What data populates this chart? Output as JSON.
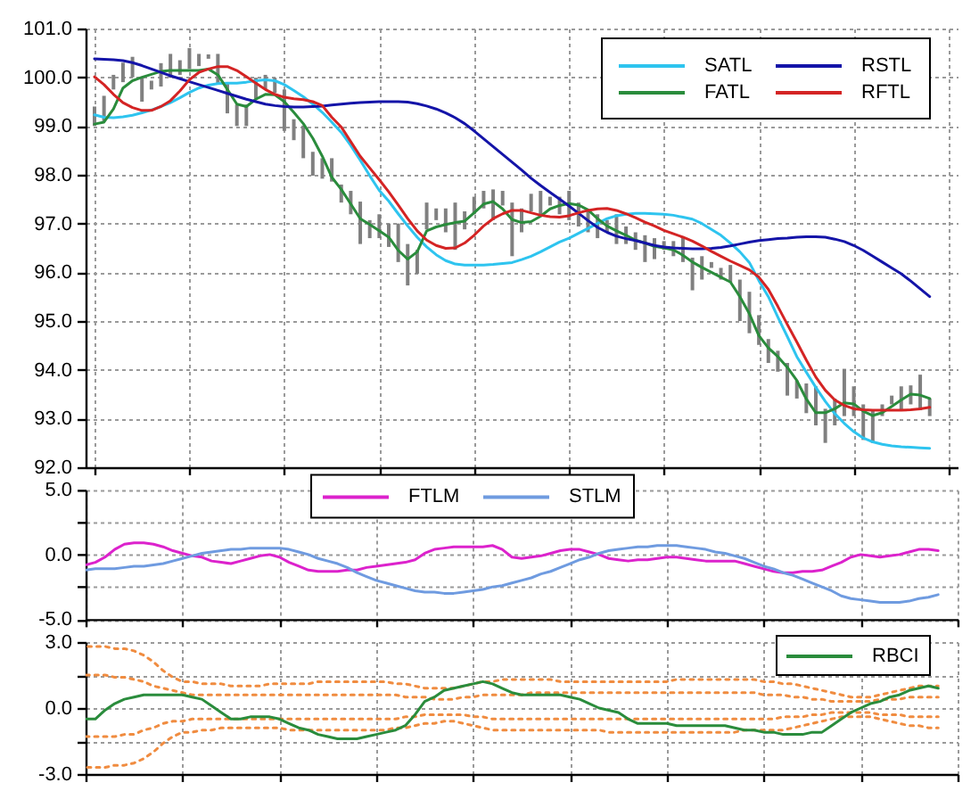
{
  "chart_data": [
    {
      "type": "line",
      "categories": [
        null,
        null,
        null,
        null,
        null,
        null,
        null,
        null,
        null,
        null,
        null,
        null,
        null,
        null,
        null,
        null,
        null,
        null,
        null,
        null,
        null,
        null,
        null,
        null,
        null,
        null,
        null,
        null,
        null,
        null,
        null,
        null,
        null,
        null,
        null,
        null,
        null,
        null,
        null,
        null,
        null,
        null,
        null,
        null,
        null,
        null,
        null,
        null,
        null,
        null,
        null,
        null,
        null,
        null,
        null,
        null,
        null,
        null,
        null,
        null,
        null,
        null,
        null,
        null,
        null,
        null,
        null,
        null,
        null,
        null,
        null,
        null,
        null,
        null,
        null,
        null,
        null,
        null,
        null,
        null,
        null,
        null,
        null,
        null,
        null,
        null,
        null,
        null,
        null,
        null,
        null
      ],
      "ylim": [
        92,
        101
      ],
      "yticks": [
        {
          "value": 92,
          "label": "92.0"
        },
        {
          "value": 93,
          "label": "93.0"
        },
        {
          "value": 94,
          "label": "94.0"
        },
        {
          "value": 95,
          "label": "95.0"
        },
        {
          "value": 96,
          "label": "96.0"
        },
        {
          "value": 97,
          "label": "97.0"
        },
        {
          "value": 98,
          "label": "98.0"
        },
        {
          "value": 99,
          "label": "99.0"
        },
        {
          "value": 100,
          "label": "100.0"
        },
        {
          "value": 101,
          "label": "101.0"
        }
      ],
      "grid": true,
      "legend": "top right",
      "series": [
        {
          "type": "bar",
          "color": "#808080",
          "base": [
            99.0,
            99.1,
            99.75,
            99.9,
            100.0,
            99.5,
            99.75,
            99.81,
            99.99,
            100.05,
            100.17,
            100.23,
            100.38,
            99.87,
            99.26,
            99.0,
            99.0,
            99.56,
            99.75,
            99.68,
            98.9,
            98.71,
            98.34,
            97.98,
            97.92,
            97.86,
            97.43,
            97.19,
            96.58,
            96.7,
            96.7,
            96.52,
            96.21,
            95.73,
            95.97,
            96.88,
            97.07,
            96.82,
            96.46,
            96.88,
            97.19,
            97.31,
            97.07,
            97.37,
            96.33,
            96.82,
            97.25,
            97.19,
            97.37,
            97.19,
            97.07,
            96.94,
            96.82,
            96.7,
            96.82,
            96.58,
            96.58,
            96.46,
            96.21,
            96.27,
            96.46,
            96.33,
            96.21,
            95.63,
            95.85,
            96.09,
            95.85,
            95.79,
            95.0,
            94.75,
            94.51,
            94.14,
            93.96,
            93.47,
            93.41,
            93.11,
            92.86,
            92.5,
            92.86,
            93.05,
            93.05,
            92.56,
            92.5,
            93.05,
            93.29,
            93.17,
            93.29,
            93.17,
            93.05,
            null,
            null
          ],
          "values": [
            0.4,
            0.52,
            0.3,
            0.4,
            0.42,
            0.49,
            0.18,
            0.48,
            0.49,
            0.3,
            0.43,
            0.25,
            0.09,
            0.61,
            0.61,
            0.44,
            0.44,
            0.43,
            0.3,
            0.31,
            0.85,
            0.43,
            0.67,
            0.49,
            0.42,
            0.48,
            0.37,
            0.48,
            0.87,
            0.37,
            0.49,
            0.48,
            0.79,
            0.85,
            0.49,
            0.55,
            0.24,
            0.49,
            0.97,
            0.37,
            0.36,
            0.36,
            0.63,
            0.3,
            1.1,
            0.49,
            0.36,
            0.48,
            0.18,
            0.36,
            0.6,
            0.49,
            0.43,
            0.49,
            0.25,
            0.61,
            0.36,
            0.36,
            0.55,
            0.43,
            0.18,
            0.31,
            0.49,
            0.67,
            0.48,
            0.12,
            0.24,
            0.36,
            0.85,
            0.85,
            0.61,
            0.49,
            0.43,
            0.67,
            0.37,
            0.61,
            0.8,
            0.7,
            0.55,
            0.97,
            0.61,
            0.73,
            0.67,
            0.24,
            0.18,
            0.49,
            0.39,
            0.73,
            0.36,
            null,
            null
          ]
        },
        {
          "name": "SATL",
          "color": "#2ec4ef",
          "values": [
            99.23,
            99.18,
            99.17,
            99.19,
            99.22,
            99.27,
            99.33,
            99.4,
            99.48,
            99.58,
            99.69,
            99.78,
            99.84,
            99.87,
            99.88,
            99.88,
            99.9,
            99.93,
            99.95,
            99.93,
            99.85,
            99.73,
            99.6,
            99.45,
            99.28,
            99.08,
            98.87,
            98.6,
            98.3,
            97.98,
            97.68,
            97.46,
            97.2,
            96.95,
            96.72,
            96.52,
            96.36,
            96.24,
            96.17,
            96.15,
            96.15,
            96.15,
            96.16,
            96.18,
            96.2,
            96.26,
            96.33,
            96.42,
            96.52,
            96.62,
            96.7,
            96.8,
            96.9,
            97.0,
            97.1,
            97.16,
            97.19,
            97.21,
            97.21,
            97.2,
            97.19,
            97.17,
            97.13,
            97.09,
            97.0,
            96.88,
            96.76,
            96.6,
            96.42,
            96.2,
            95.83,
            95.5,
            95.08,
            94.68,
            94.27,
            93.95,
            93.64,
            93.35,
            93.1,
            92.9,
            92.73,
            92.6,
            92.52,
            92.47,
            92.44,
            92.42,
            92.41,
            92.4,
            92.39,
            null,
            null
          ]
        },
        {
          "name": "FATL",
          "color": "#2a8c3c",
          "values": [
            99.04,
            99.08,
            99.35,
            99.78,
            99.93,
            100.0,
            100.06,
            100.12,
            100.14,
            100.14,
            100.14,
            100.14,
            100.17,
            100.05,
            99.75,
            99.45,
            99.4,
            99.55,
            99.65,
            99.64,
            99.5,
            99.28,
            99.05,
            98.75,
            98.38,
            97.95,
            97.7,
            97.4,
            97.1,
            96.98,
            96.85,
            96.72,
            96.45,
            96.27,
            96.42,
            96.85,
            96.93,
            96.98,
            97.02,
            97.05,
            97.22,
            97.4,
            97.45,
            97.3,
            97.08,
            97.02,
            97.04,
            97.15,
            97.3,
            97.37,
            97.41,
            97.38,
            97.28,
            97.1,
            96.95,
            96.85,
            96.76,
            96.66,
            96.6,
            96.53,
            96.5,
            96.46,
            96.35,
            96.21,
            96.1,
            96.0,
            95.9,
            95.8,
            95.5,
            95.15,
            94.7,
            94.45,
            94.27,
            94.05,
            93.78,
            93.4,
            93.12,
            93.12,
            93.2,
            93.32,
            93.3,
            93.15,
            93.06,
            93.12,
            93.25,
            93.38,
            93.5,
            93.48,
            93.41,
            null,
            null
          ]
        },
        {
          "name": "RSTL",
          "color": "#1414a8",
          "values": [
            100.38,
            100.37,
            100.36,
            100.34,
            100.3,
            100.24,
            100.17,
            100.1,
            100.03,
            99.97,
            99.91,
            99.85,
            99.79,
            99.73,
            99.67,
            99.61,
            99.55,
            99.5,
            99.45,
            99.42,
            99.4,
            99.39,
            99.39,
            99.4,
            99.41,
            99.43,
            99.45,
            99.47,
            99.48,
            99.49,
            99.5,
            99.5,
            99.5,
            99.49,
            99.46,
            99.41,
            99.35,
            99.27,
            99.17,
            99.05,
            98.9,
            98.74,
            98.58,
            98.42,
            98.26,
            98.1,
            97.93,
            97.78,
            97.64,
            97.5,
            97.36,
            97.21,
            97.06,
            96.92,
            96.82,
            96.74,
            96.69,
            96.65,
            96.6,
            96.55,
            96.52,
            96.5,
            96.49,
            96.48,
            96.48,
            96.49,
            96.51,
            96.54,
            96.58,
            96.62,
            96.65,
            96.67,
            96.69,
            96.7,
            96.72,
            96.73,
            96.73,
            96.72,
            96.68,
            96.63,
            96.55,
            96.45,
            96.33,
            96.21,
            96.09,
            95.97,
            95.82,
            95.66,
            95.5,
            null,
            null
          ]
        },
        {
          "name": "RFTL",
          "color": "#d42424",
          "values": [
            100.01,
            99.85,
            99.65,
            99.48,
            99.38,
            99.32,
            99.32,
            99.4,
            99.52,
            99.72,
            99.95,
            100.1,
            100.17,
            100.22,
            100.22,
            100.14,
            100.01,
            99.88,
            99.75,
            99.65,
            99.59,
            99.56,
            99.54,
            99.5,
            99.42,
            99.18,
            98.98,
            98.68,
            98.38,
            98.14,
            97.9,
            97.65,
            97.38,
            97.1,
            96.85,
            96.66,
            96.55,
            96.49,
            96.5,
            96.6,
            96.76,
            96.95,
            97.1,
            97.2,
            97.27,
            97.27,
            97.22,
            97.17,
            97.14,
            97.13,
            97.16,
            97.22,
            97.27,
            97.3,
            97.31,
            97.27,
            97.2,
            97.12,
            97.03,
            96.95,
            96.86,
            96.79,
            96.72,
            96.64,
            96.54,
            96.43,
            96.33,
            96.23,
            96.14,
            96.05,
            95.9,
            95.65,
            95.3,
            94.93,
            94.57,
            94.2,
            93.85,
            93.58,
            93.38,
            93.27,
            93.2,
            93.18,
            93.17,
            93.17,
            93.17,
            93.17,
            93.18,
            93.2,
            93.23,
            null,
            null
          ]
        }
      ]
    },
    {
      "type": "line",
      "categories": [
        null,
        null,
        null,
        null,
        null,
        null,
        null,
        null,
        null,
        null,
        null,
        null,
        null,
        null,
        null,
        null,
        null,
        null,
        null,
        null,
        null,
        null,
        null,
        null,
        null,
        null,
        null,
        null,
        null,
        null,
        null,
        null,
        null,
        null,
        null,
        null,
        null,
        null,
        null,
        null,
        null,
        null,
        null,
        null,
        null,
        null,
        null,
        null,
        null,
        null,
        null,
        null,
        null,
        null,
        null,
        null,
        null,
        null,
        null,
        null,
        null,
        null,
        null,
        null,
        null,
        null,
        null,
        null,
        null,
        null,
        null,
        null,
        null,
        null,
        null,
        null,
        null,
        null,
        null,
        null,
        null,
        null,
        null,
        null,
        null,
        null,
        null,
        null,
        null,
        null,
        null
      ],
      "ylim": [
        -5,
        5
      ],
      "yticks": [
        {
          "value": -5,
          "label": "-5.0"
        },
        {
          "value": -2.5,
          "label": null
        },
        {
          "value": 0,
          "label": "0.0"
        },
        {
          "value": 2.5,
          "label": null
        },
        {
          "value": 5,
          "label": "5.0"
        }
      ],
      "grid": true,
      "legend": "top",
      "series": [
        {
          "name": "FTLM",
          "color": "#dc22cc",
          "values": [
            -0.8,
            -0.6,
            -0.2,
            0.4,
            0.8,
            0.9,
            0.9,
            0.8,
            0.6,
            0.3,
            0.1,
            -0.1,
            -0.2,
            -0.5,
            -0.6,
            -0.7,
            -0.5,
            -0.3,
            -0.1,
            0,
            -0.2,
            -0.6,
            -0.9,
            -1.2,
            -1.3,
            -1.3,
            -1.3,
            -1.2,
            -1.2,
            -1.0,
            -0.9,
            -0.8,
            -0.7,
            -0.6,
            -0.4,
            0.1,
            0.4,
            0.5,
            0.6,
            0.6,
            0.6,
            0.6,
            0.7,
            0.4,
            -0.2,
            -0.3,
            -0.2,
            -0.1,
            0.1,
            0.3,
            0.4,
            0.4,
            0.2,
            0,
            -0.3,
            -0.4,
            -0.5,
            -0.4,
            -0.4,
            -0.3,
            -0.2,
            -0.2,
            -0.3,
            -0.4,
            -0.5,
            -0.5,
            -0.5,
            -0.5,
            -0.7,
            -0.9,
            -1.1,
            -1.3,
            -1.4,
            -1.4,
            -1.3,
            -1.3,
            -1.2,
            -0.9,
            -0.6,
            -0.2,
            0,
            -0.1,
            -0.2,
            -0.1,
            0,
            0.2,
            0.4,
            0.4,
            0.3,
            null,
            null
          ]
        },
        {
          "name": "STLM",
          "color": "#6f9be0",
          "values": [
            -1.2,
            -1.1,
            -1.1,
            -1.1,
            -1.0,
            -0.9,
            -0.9,
            -0.8,
            -0.7,
            -0.5,
            -0.3,
            -0.1,
            0.1,
            0.2,
            0.3,
            0.4,
            0.4,
            0.5,
            0.5,
            0.5,
            0.5,
            0.4,
            0.2,
            0,
            -0.3,
            -0.5,
            -0.7,
            -1.0,
            -1.4,
            -1.7,
            -2.0,
            -2.2,
            -2.4,
            -2.6,
            -2.8,
            -2.9,
            -2.9,
            -3.0,
            -3.0,
            -2.9,
            -2.8,
            -2.7,
            -2.5,
            -2.4,
            -2.2,
            -2.0,
            -1.8,
            -1.5,
            -1.3,
            -1.0,
            -0.7,
            -0.4,
            -0.2,
            0.1,
            0.3,
            0.4,
            0.5,
            0.6,
            0.6,
            0.7,
            0.7,
            0.7,
            0.6,
            0.5,
            0.4,
            0.2,
            0.1,
            -0.1,
            -0.3,
            -0.6,
            -0.9,
            -1.1,
            -1.4,
            -1.6,
            -1.9,
            -2.2,
            -2.5,
            -2.8,
            -3.2,
            -3.4,
            -3.5,
            -3.6,
            -3.7,
            -3.7,
            -3.7,
            -3.6,
            -3.4,
            -3.3,
            -3.1,
            null,
            null
          ]
        }
      ]
    },
    {
      "type": "line",
      "categories": [
        null,
        null,
        null,
        null,
        null,
        null,
        null,
        null,
        null,
        null,
        null,
        null,
        null,
        null,
        null,
        null,
        null,
        null,
        null,
        null,
        null,
        null,
        null,
        null,
        null,
        null,
        null,
        null,
        null,
        null,
        null,
        null,
        null,
        null,
        null,
        null,
        null,
        null,
        null,
        null,
        null,
        null,
        null,
        null,
        null,
        null,
        null,
        null,
        null,
        null,
        null,
        null,
        null,
        null,
        null,
        null,
        null,
        null,
        null,
        null,
        null,
        null,
        null,
        null,
        null,
        null,
        null,
        null,
        null,
        null,
        null,
        null,
        null,
        null,
        null,
        null,
        null,
        null,
        null,
        null,
        null,
        null,
        null,
        null,
        null,
        null,
        null,
        null,
        null,
        null,
        null
      ],
      "ylim": [
        -3,
        3
      ],
      "yticks": [
        {
          "value": -3,
          "label": "-3.0"
        },
        {
          "value": -1.5,
          "label": null
        },
        {
          "value": 0,
          "label": "0.0"
        },
        {
          "value": 1.5,
          "label": null
        },
        {
          "value": 3,
          "label": "3.0"
        }
      ],
      "grid": true,
      "legend": "top right",
      "series": [
        {
          "color": "#f08c40",
          "line_style": "dashed",
          "values": [
            2.8,
            2.8,
            2.8,
            2.7,
            2.7,
            2.6,
            2.4,
            2.1,
            1.7,
            1.4,
            1.2,
            1.2,
            1.1,
            1.1,
            1.1,
            1.0,
            1.0,
            1.0,
            1.0,
            1.1,
            1.1,
            1.1,
            1.1,
            1.1,
            1.2,
            1.2,
            1.2,
            1.2,
            1.2,
            1.2,
            1.2,
            1.2,
            1.1,
            1.1,
            1.0,
            0.9,
            0.9,
            0.9,
            0.9,
            1.0,
            1.1,
            1.2,
            1.2,
            1.3,
            1.3,
            1.3,
            1.3,
            1.3,
            1.3,
            1.2,
            1.2,
            1.2,
            1.2,
            1.2,
            1.2,
            1.2,
            1.2,
            1.2,
            1.2,
            1.2,
            1.2,
            1.3,
            1.3,
            1.3,
            1.3,
            1.3,
            1.3,
            1.3,
            1.3,
            1.3,
            1.2,
            1.2,
            1.1,
            1.1,
            1.0,
            0.9,
            0.8,
            0.7,
            0.6,
            0.5,
            0.5,
            0.5,
            0.6,
            0.7,
            0.8,
            0.9,
            1.0,
            1.0,
            1.0,
            null,
            null
          ]
        },
        {
          "color": "#f08c40",
          "line_style": "dashed",
          "values": [
            1.5,
            1.5,
            1.5,
            1.4,
            1.4,
            1.3,
            1.2,
            1.0,
            0.9,
            0.8,
            0.7,
            0.6,
            0.6,
            0.6,
            0.6,
            0.6,
            0.6,
            0.6,
            0.6,
            0.6,
            0.6,
            0.6,
            0.6,
            0.6,
            0.6,
            0.6,
            0.6,
            0.6,
            0.6,
            0.6,
            0.6,
            0.6,
            0.6,
            0.5,
            0.5,
            0.5,
            0.4,
            0.4,
            0.4,
            0.5,
            0.5,
            0.6,
            0.6,
            0.6,
            0.6,
            0.6,
            0.7,
            0.7,
            0.7,
            0.7,
            0.7,
            0.7,
            0.7,
            0.7,
            0.7,
            0.7,
            0.7,
            0.7,
            0.7,
            0.7,
            0.7,
            0.7,
            0.7,
            0.7,
            0.7,
            0.7,
            0.7,
            0.7,
            0.7,
            0.7,
            0.6,
            0.6,
            0.6,
            0.5,
            0.5,
            0.4,
            0.4,
            0.3,
            0.3,
            0.3,
            0.3,
            0.3,
            0.4,
            0.4,
            0.4,
            0.5,
            0.5,
            0.5,
            0.5,
            null,
            null
          ]
        },
        {
          "color": "#f08c40",
          "line_style": "dashed",
          "values": [
            -1.3,
            -1.3,
            -1.3,
            -1.3,
            -1.2,
            -1.2,
            -1.0,
            -0.9,
            -0.7,
            -0.6,
            -0.6,
            -0.5,
            -0.5,
            -0.5,
            -0.5,
            -0.5,
            -0.5,
            -0.5,
            -0.5,
            -0.5,
            -0.5,
            -0.5,
            -0.5,
            -0.5,
            -0.5,
            -0.5,
            -0.5,
            -0.5,
            -0.5,
            -0.5,
            -0.5,
            -0.5,
            -0.5,
            -0.4,
            -0.4,
            -0.3,
            -0.3,
            -0.3,
            -0.3,
            -0.3,
            -0.4,
            -0.4,
            -0.5,
            -0.5,
            -0.5,
            -0.5,
            -0.5,
            -0.5,
            -0.5,
            -0.5,
            -0.5,
            -0.5,
            -0.5,
            -0.5,
            -0.5,
            -0.5,
            -0.5,
            -0.5,
            -0.5,
            -0.5,
            -0.5,
            -0.5,
            -0.5,
            -0.5,
            -0.5,
            -0.5,
            -0.5,
            -0.5,
            -0.5,
            -0.5,
            -0.5,
            -0.5,
            -0.4,
            -0.4,
            -0.4,
            -0.3,
            -0.3,
            -0.2,
            -0.2,
            -0.2,
            -0.2,
            -0.2,
            -0.3,
            -0.3,
            -0.3,
            -0.4,
            -0.4,
            -0.4,
            -0.4,
            null,
            null
          ]
        },
        {
          "color": "#f08c40",
          "line_style": "dashed",
          "values": [
            -2.7,
            -2.7,
            -2.7,
            -2.6,
            -2.6,
            -2.5,
            -2.3,
            -2.0,
            -1.6,
            -1.3,
            -1.1,
            -1.1,
            -1.0,
            -1.0,
            -0.9,
            -0.9,
            -0.9,
            -0.9,
            -0.9,
            -0.9,
            -0.9,
            -1.0,
            -1.0,
            -1.0,
            -1.0,
            -1.0,
            -1.0,
            -1.0,
            -1.0,
            -1.0,
            -1.0,
            -1.0,
            -0.9,
            -0.9,
            -0.8,
            -0.7,
            -0.7,
            -0.6,
            -0.6,
            -0.7,
            -0.8,
            -0.9,
            -1.0,
            -1.0,
            -1.0,
            -1.0,
            -1.0,
            -1.0,
            -1.0,
            -1.0,
            -1.0,
            -1.0,
            -1.0,
            -1.0,
            -1.1,
            -1.1,
            -1.1,
            -1.1,
            -1.1,
            -1.1,
            -1.1,
            -1.1,
            -1.1,
            -1.1,
            -1.1,
            -1.1,
            -1.1,
            -1.1,
            -1.0,
            -1.0,
            -1.0,
            -1.0,
            -1.0,
            -0.9,
            -0.8,
            -0.7,
            -0.6,
            -0.5,
            -0.4,
            -0.4,
            -0.4,
            -0.4,
            -0.5,
            -0.6,
            -0.7,
            -0.8,
            -0.8,
            -0.9,
            -0.9,
            null,
            null
          ]
        },
        {
          "name": "RBCI",
          "color": "#2a8c3c",
          "values": [
            -0.5,
            -0.5,
            -0.1,
            0.2,
            0.4,
            0.5,
            0.6,
            0.6,
            0.6,
            0.6,
            0.6,
            0.5,
            0.4,
            0.1,
            -0.2,
            -0.5,
            -0.5,
            -0.4,
            -0.4,
            -0.4,
            -0.5,
            -0.7,
            -0.9,
            -1.0,
            -1.2,
            -1.3,
            -1.4,
            -1.4,
            -1.4,
            -1.3,
            -1.2,
            -1.1,
            -1.0,
            -0.8,
            -0.3,
            0.3,
            0.5,
            0.8,
            0.9,
            1.0,
            1.1,
            1.2,
            1.1,
            0.9,
            0.7,
            0.6,
            0.6,
            0.6,
            0.6,
            0.6,
            0.5,
            0.4,
            0.2,
            0.0,
            -0.1,
            -0.2,
            -0.5,
            -0.7,
            -0.7,
            -0.7,
            -0.7,
            -0.8,
            -0.8,
            -0.8,
            -0.8,
            -0.8,
            -0.8,
            -0.9,
            -1.0,
            -1.0,
            -1.1,
            -1.1,
            -1.2,
            -1.2,
            -1.2,
            -1.1,
            -1.1,
            -0.8,
            -0.5,
            -0.2,
            0.0,
            0.2,
            0.3,
            0.5,
            0.6,
            0.8,
            0.9,
            1.0,
            0.9,
            null,
            null
          ]
        }
      ]
    }
  ]
}
